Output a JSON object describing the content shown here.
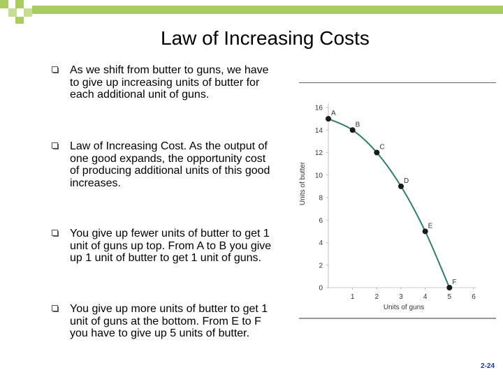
{
  "slide": {
    "title": "Law of Increasing Costs",
    "page_number": "2-24",
    "bullets": [
      "As we shift from butter to guns, we have to give up increasing units of butter  for each additional unit of guns.",
      "Law of Increasing Cost.  As the output of one good expands, the opportunity cost of producing additional units of this good increases.",
      "You give up fewer units of butter to get 1 unit of guns up top.  From A to B you give up 1 unit of butter to get 1 unit of guns.",
      "You give up more units of butter to get 1 unit of guns at the bottom.  From E to F you have to give up 5 units of butter."
    ],
    "colors": {
      "accent_green": "#8fbf3a",
      "curve": "#2e7d6a",
      "point": "#1a1a1a"
    }
  },
  "chart_data": {
    "type": "line",
    "xlabel": "Units of guns",
    "ylabel": "Units of butter",
    "xlim": [
      0,
      6
    ],
    "ylim": [
      0,
      16
    ],
    "x_ticks": [
      "1",
      "2",
      "3",
      "4",
      "5",
      "6"
    ],
    "y_ticks": [
      "0",
      "2",
      "4",
      "6",
      "8",
      "10",
      "12",
      "14",
      "16"
    ],
    "points": [
      {
        "label": "A",
        "x": 0,
        "y": 15
      },
      {
        "label": "B",
        "x": 1,
        "y": 14
      },
      {
        "label": "C",
        "x": 2,
        "y": 12
      },
      {
        "label": "D",
        "x": 3,
        "y": 9
      },
      {
        "label": "E",
        "x": 4,
        "y": 5
      },
      {
        "label": "F",
        "x": 5,
        "y": 0
      }
    ]
  }
}
